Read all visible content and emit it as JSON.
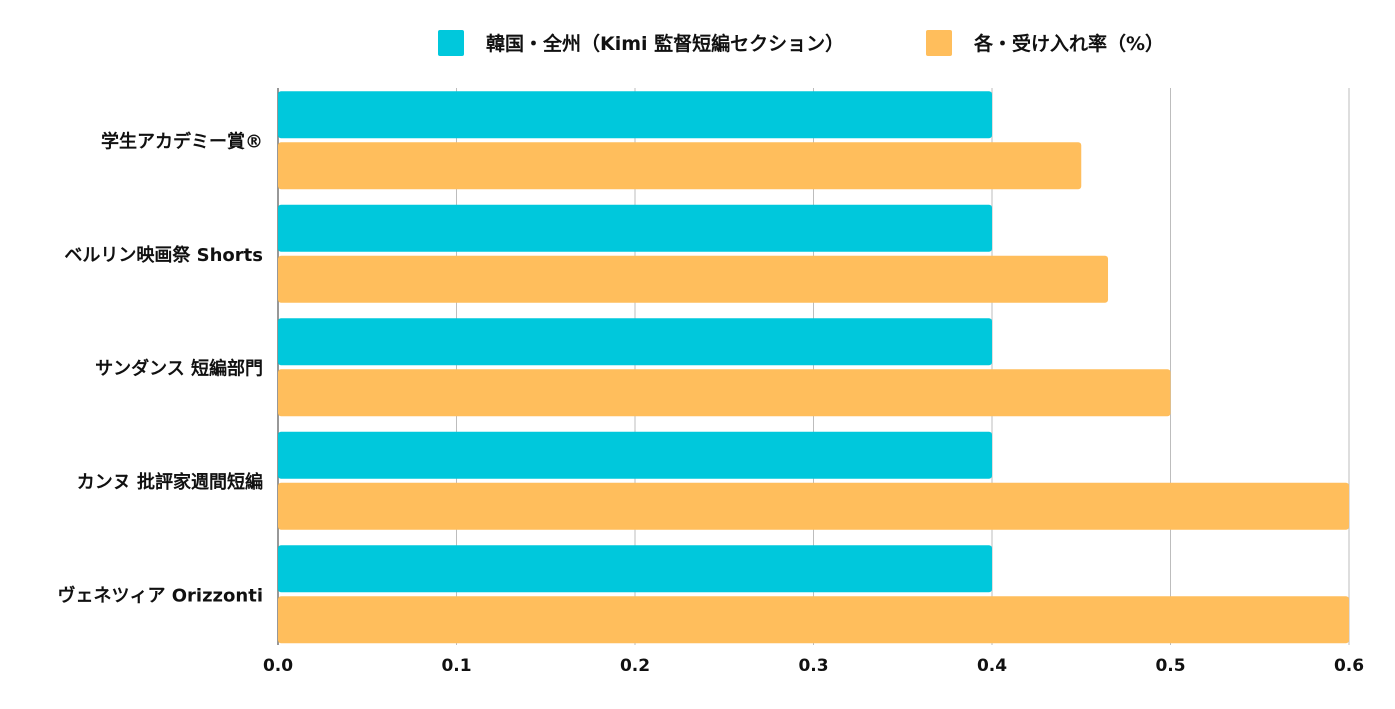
{
  "chart_data": {
    "type": "bar",
    "orientation": "horizontal",
    "title": "",
    "xlabel": "",
    "ylabel": "",
    "categories": [
      "学生アカデミー賞®",
      "ベルリン映画祭 Shorts",
      "サンダンス 短編部門",
      "カンヌ 批評家週間短編",
      "ヴェネツィア Orizzonti"
    ],
    "series": [
      {
        "name": "韓国・全州（Kimi 監督短編セクション）",
        "color": "#00c8dc",
        "values": [
          0.4,
          0.4,
          0.4,
          0.4,
          0.4
        ]
      },
      {
        "name": "各・受け入れ率（%）",
        "color": "#ffbe5c",
        "values": [
          0.45,
          0.465,
          0.5,
          0.6,
          0.6
        ]
      }
    ],
    "xlim": [
      0,
      0.6
    ],
    "xticks": [
      "0.0",
      "0.1",
      "0.2",
      "0.3",
      "0.4",
      "0.5",
      "0.6"
    ],
    "grid": true,
    "legend_position": "top-center"
  }
}
